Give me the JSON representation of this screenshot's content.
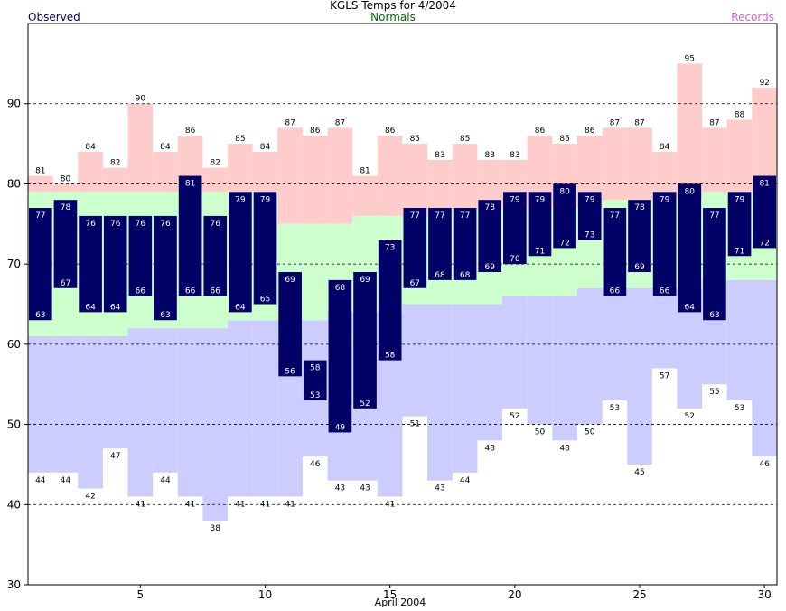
{
  "chart_data": {
    "type": "bar",
    "title": "KGLS Temps for 4/2004",
    "legend": {
      "observed": "Observed",
      "normals": "Normals",
      "records": "Records"
    },
    "xlabel": "April 2004",
    "x_ticks": [
      5,
      10,
      15,
      20,
      25,
      30
    ],
    "y_ticks": [
      30,
      40,
      50,
      60,
      70,
      80,
      90
    ],
    "xlim": [
      0.5,
      30.5
    ],
    "ylim": [
      30,
      100
    ],
    "grid": true,
    "colors": {
      "observed": "#000066",
      "normal": "#ccffcc",
      "record_high": "#ffcccc",
      "record_low": "#ccccff",
      "observed_label": "#ffffff",
      "record_label": "#000000"
    },
    "days": [
      1,
      2,
      3,
      4,
      5,
      6,
      7,
      8,
      9,
      10,
      11,
      12,
      13,
      14,
      15,
      16,
      17,
      18,
      19,
      20,
      21,
      22,
      23,
      24,
      25,
      26,
      27,
      28,
      29,
      30
    ],
    "series": [
      {
        "name": "Observed high",
        "values": [
          77,
          78,
          76,
          76,
          76,
          76,
          81,
          76,
          79,
          79,
          69,
          58,
          68,
          69,
          73,
          77,
          77,
          77,
          78,
          79,
          79,
          80,
          79,
          77,
          78,
          79,
          80,
          77,
          79,
          81
        ]
      },
      {
        "name": "Observed low",
        "values": [
          63,
          67,
          64,
          64,
          66,
          63,
          66,
          66,
          64,
          65,
          56,
          53,
          49,
          52,
          58,
          67,
          68,
          68,
          69,
          70,
          71,
          72,
          73,
          66,
          69,
          66,
          64,
          63,
          71,
          72
        ]
      },
      {
        "name": "Record high",
        "values": [
          81,
          80,
          84,
          82,
          90,
          84,
          86,
          82,
          85,
          84,
          87,
          86,
          87,
          81,
          86,
          85,
          83,
          85,
          83,
          83,
          86,
          85,
          86,
          87,
          87,
          84,
          95,
          87,
          88,
          92
        ]
      },
      {
        "name": "Record low",
        "values": [
          44,
          44,
          42,
          47,
          41,
          44,
          41,
          38,
          41,
          41,
          41,
          46,
          43,
          43,
          41,
          51,
          43,
          44,
          48,
          52,
          50,
          48,
          50,
          53,
          45,
          57,
          52,
          55,
          53,
          46
        ]
      },
      {
        "name": "Normal high",
        "values": [
          79,
          79,
          79,
          79,
          79,
          79,
          79,
          79,
          79,
          79,
          75,
          75,
          75,
          76,
          76,
          76,
          76,
          77,
          77,
          77,
          77,
          77,
          77,
          78,
          78,
          78,
          78,
          79,
          79,
          79
        ]
      },
      {
        "name": "Normal low",
        "values": [
          61,
          61,
          61,
          61,
          62,
          62,
          62,
          62,
          63,
          63,
          63,
          63,
          64,
          64,
          64,
          65,
          65,
          65,
          65,
          66,
          66,
          66,
          67,
          67,
          67,
          67,
          67,
          68,
          68,
          68
        ]
      }
    ]
  }
}
